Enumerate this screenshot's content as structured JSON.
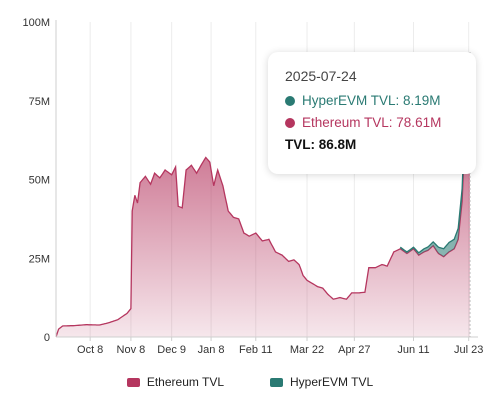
{
  "chart_data": {
    "type": "area",
    "stacked": true,
    "title": "",
    "xlabel": "",
    "ylabel": "",
    "x_tick_labels": [
      "Oct 8",
      "Nov 8",
      "Dec 9",
      "Jan 8",
      "Feb 11",
      "Mar 22",
      "Apr 27",
      "Jun 11",
      "Jul 23"
    ],
    "y_tick_labels": [
      "0",
      "25M",
      "50M",
      "75M",
      "100M"
    ],
    "ylim": [
      0,
      100
    ],
    "y_unit": "M",
    "grid": "vertical",
    "legend_position": "bottom",
    "series": [
      {
        "name": "Ethereum TVL",
        "color": "#b5365f",
        "points": [
          [
            "2024-09-12",
            0
          ],
          [
            "2024-09-14",
            2.5
          ],
          [
            "2024-09-17",
            3.5
          ],
          [
            "2024-09-25",
            3.6
          ],
          [
            "2024-10-05",
            3.9
          ],
          [
            "2024-10-15",
            3.8
          ],
          [
            "2024-10-22",
            4.5
          ],
          [
            "2024-10-29",
            5.5
          ],
          [
            "2024-11-05",
            7.5
          ],
          [
            "2024-11-08",
            9.0
          ],
          [
            "2024-11-09",
            40.0
          ],
          [
            "2024-11-11",
            45.0
          ],
          [
            "2024-11-13",
            42.5
          ],
          [
            "2024-11-15",
            49.0
          ],
          [
            "2024-11-19",
            51.0
          ],
          [
            "2024-11-23",
            48.5
          ],
          [
            "2024-11-26",
            52.0
          ],
          [
            "2024-11-30",
            50.5
          ],
          [
            "2024-12-04",
            53.0
          ],
          [
            "2024-12-09",
            51.5
          ],
          [
            "2024-12-12",
            54.0
          ],
          [
            "2024-12-14",
            41.5
          ],
          [
            "2024-12-17",
            41.0
          ],
          [
            "2024-12-20",
            53.0
          ],
          [
            "2024-12-24",
            54.5
          ],
          [
            "2024-12-28",
            52.0
          ],
          [
            "2025-01-01",
            55.0
          ],
          [
            "2025-01-04",
            57.0
          ],
          [
            "2025-01-07",
            55.5
          ],
          [
            "2025-01-10",
            48.0
          ],
          [
            "2025-01-13",
            53.0
          ],
          [
            "2025-01-17",
            48.0
          ],
          [
            "2025-01-21",
            40.0
          ],
          [
            "2025-01-25",
            38.0
          ],
          [
            "2025-01-29",
            37.5
          ],
          [
            "2025-02-02",
            33.0
          ],
          [
            "2025-02-06",
            32.0
          ],
          [
            "2025-02-11",
            33.0
          ],
          [
            "2025-02-16",
            30.5
          ],
          [
            "2025-02-21",
            31.0
          ],
          [
            "2025-02-26",
            27.0
          ],
          [
            "2025-03-03",
            26.0
          ],
          [
            "2025-03-08",
            24.0
          ],
          [
            "2025-03-12",
            24.5
          ],
          [
            "2025-03-16",
            23.0
          ],
          [
            "2025-03-19",
            19.5
          ],
          [
            "2025-03-22",
            18.0
          ],
          [
            "2025-03-26",
            17.0
          ],
          [
            "2025-03-30",
            16.0
          ],
          [
            "2025-04-03",
            15.5
          ],
          [
            "2025-04-07",
            13.5
          ],
          [
            "2025-04-11",
            12.0
          ],
          [
            "2025-04-16",
            12.5
          ],
          [
            "2025-04-21",
            12.0
          ],
          [
            "2025-04-25",
            14.0
          ],
          [
            "2025-04-30",
            14.0
          ],
          [
            "2025-05-05",
            14.2
          ],
          [
            "2025-05-08",
            22.0
          ],
          [
            "2025-05-13",
            22.0
          ],
          [
            "2025-05-18",
            23.0
          ],
          [
            "2025-05-22",
            22.5
          ],
          [
            "2025-05-27",
            27.0
          ],
          [
            "2025-06-01",
            28.0
          ],
          [
            "2025-06-06",
            26.5
          ],
          [
            "2025-06-11",
            28.0
          ],
          [
            "2025-06-15",
            26.0
          ],
          [
            "2025-06-19",
            27.0
          ],
          [
            "2025-06-22",
            27.5
          ],
          [
            "2025-06-26",
            29.0
          ],
          [
            "2025-06-30",
            26.5
          ],
          [
            "2025-07-04",
            25.5
          ],
          [
            "2025-07-08",
            27.0
          ],
          [
            "2025-07-12",
            28.0
          ],
          [
            "2025-07-15",
            31.0
          ],
          [
            "2025-07-18",
            43.0
          ],
          [
            "2025-07-20",
            62.0
          ],
          [
            "2025-07-22",
            73.0
          ],
          [
            "2025-07-24",
            78.61
          ]
        ]
      },
      {
        "name": "HyperEVM TVL",
        "color": "#2a7a73",
        "points": [
          [
            "2025-06-01",
            0.5
          ],
          [
            "2025-06-11",
            0.5
          ],
          [
            "2025-06-19",
            1.0
          ],
          [
            "2025-06-26",
            1.2
          ],
          [
            "2025-06-30",
            2.0
          ],
          [
            "2025-07-04",
            2.5
          ],
          [
            "2025-07-08",
            3.0
          ],
          [
            "2025-07-12",
            3.0
          ],
          [
            "2025-07-15",
            3.5
          ],
          [
            "2025-07-18",
            4.0
          ],
          [
            "2025-07-20",
            5.5
          ],
          [
            "2025-07-22",
            7.0
          ],
          [
            "2025-07-24",
            8.19
          ]
        ]
      }
    ],
    "tooltip": {
      "date": "2025-07-24",
      "rows": [
        {
          "label": "HyperEVM TVL: 8.19M",
          "color": "#2a7a73"
        },
        {
          "label": "Ethereum TVL: 78.61M",
          "color": "#b5365f"
        }
      ],
      "total": "TVL: 86.8M"
    }
  }
}
